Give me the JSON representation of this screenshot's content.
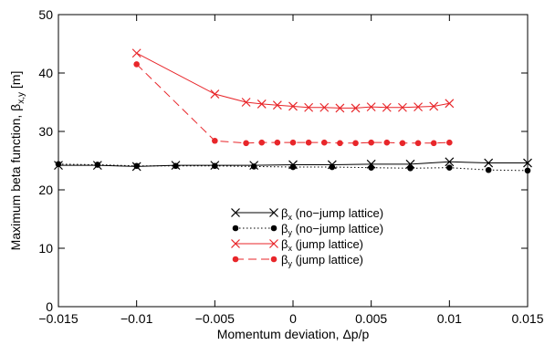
{
  "chart_data": {
    "type": "line",
    "title": "",
    "xlabel": "Momentum deviation, Δp/p",
    "ylabel": "Maximum beta function, βx,y [m]",
    "ylabel_parts": {
      "main": "Maximum beta function, β",
      "sub": "x,y",
      "tail": " [m]"
    },
    "xlim": [
      -0.015,
      0.015
    ],
    "ylim": [
      0,
      50
    ],
    "xticks": [
      "−0.015",
      "−0.01",
      "−0.005",
      "0",
      "0.005",
      "0.01",
      "0.015"
    ],
    "xtick_values": [
      -0.015,
      -0.01,
      -0.005,
      0,
      0.005,
      0.01,
      0.015
    ],
    "yticks": [
      "0",
      "10",
      "20",
      "30",
      "40",
      "50"
    ],
    "ytick_values": [
      0,
      10,
      20,
      30,
      40,
      50
    ],
    "grid": false,
    "legend_position": "center",
    "series": [
      {
        "name": "βx (no−jump lattice)",
        "legend_main": "β",
        "legend_sub": "x",
        "legend_tail": " (no−jump lattice)",
        "color": "#000000",
        "line": "solid",
        "marker": "x",
        "x": [
          -0.015,
          -0.0125,
          -0.01,
          -0.0075,
          -0.005,
          -0.0025,
          0,
          0.0025,
          0.005,
          0.0075,
          0.01,
          0.0125,
          0.015
        ],
        "y": [
          24.2,
          24.2,
          24.0,
          24.2,
          24.2,
          24.2,
          24.3,
          24.3,
          24.4,
          24.4,
          24.8,
          24.6,
          24.6
        ]
      },
      {
        "name": "βy (no−jump lattice)",
        "legend_main": "β",
        "legend_sub": "y",
        "legend_tail": " (no−jump lattice)",
        "color": "#000000",
        "line": "dotted",
        "marker": "dot",
        "x": [
          -0.015,
          -0.0125,
          -0.01,
          -0.0075,
          -0.005,
          -0.0025,
          0,
          0.0025,
          0.005,
          0.0075,
          0.01,
          0.0125,
          0.015
        ],
        "y": [
          24.4,
          24.3,
          24.1,
          24.1,
          24.1,
          24.0,
          23.9,
          23.9,
          23.8,
          23.7,
          23.8,
          23.4,
          23.3
        ]
      },
      {
        "name": "βx (jump lattice)",
        "legend_main": "β",
        "legend_sub": "x",
        "legend_tail": " (jump lattice)",
        "color": "#e8262a",
        "line": "solid",
        "marker": "x",
        "x": [
          -0.01,
          -0.005,
          -0.003,
          -0.002,
          -0.001,
          0,
          0.001,
          0.002,
          0.003,
          0.004,
          0.005,
          0.006,
          0.007,
          0.008,
          0.009,
          0.01
        ],
        "y": [
          43.4,
          36.4,
          35.0,
          34.7,
          34.5,
          34.3,
          34.1,
          34.1,
          34.0,
          34.0,
          34.2,
          34.1,
          34.1,
          34.2,
          34.3,
          34.8
        ]
      },
      {
        "name": "βy (jump lattice)",
        "legend_main": "β",
        "legend_sub": "y",
        "legend_tail": " (jump lattice)",
        "color": "#e8262a",
        "line": "dashed",
        "marker": "dot",
        "x": [
          -0.01,
          -0.005,
          -0.003,
          -0.002,
          -0.001,
          0,
          0.001,
          0.002,
          0.003,
          0.004,
          0.005,
          0.006,
          0.007,
          0.008,
          0.009,
          0.01
        ],
        "y": [
          41.5,
          28.4,
          28.0,
          28.1,
          28.1,
          28.1,
          28.1,
          28.1,
          28.0,
          28.0,
          28.1,
          28.1,
          28.0,
          28.0,
          28.0,
          28.1
        ]
      }
    ]
  }
}
